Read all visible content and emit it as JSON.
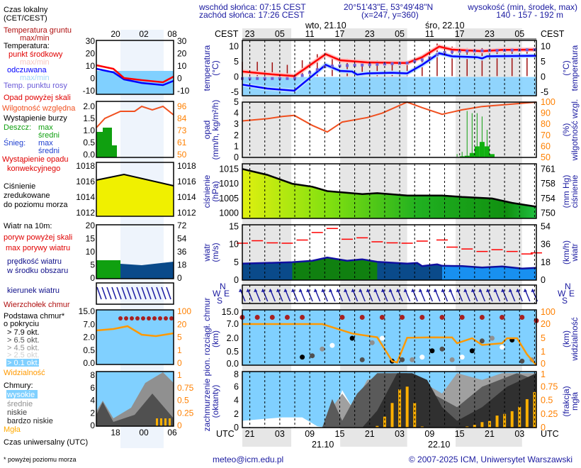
{
  "header": {
    "sunrise": "wschód słońca: 07:15 CEST",
    "sunset": "zachód słońca: 17:26 CEST",
    "coords": "20°51'43\"E, 53°49'48\"N",
    "grid": "(x=247,  y=360)",
    "elev_title": "wysokość (min, środek, max)",
    "elev_values": "140 - 157 - 192 m"
  },
  "axis": {
    "cest": "CEST",
    "utc": "UTC",
    "local_ticks": [
      "23",
      "05",
      "11",
      "17",
      "23",
      "05",
      "11",
      "17",
      "23",
      "05"
    ],
    "utc_ticks": [
      "21",
      "03",
      "09",
      "15",
      "21",
      "03",
      "09",
      "15",
      "21",
      "03"
    ],
    "date_top_1": "wto, 21.10",
    "date_top_2": "śro, 22.10",
    "date_bot_1": "21.10",
    "date_bot_2": "22.10",
    "mini_local": [
      "20",
      "02",
      "08"
    ],
    "mini_utc": [
      "18",
      "00",
      "06"
    ]
  },
  "legend": {
    "local_time": "Czas lokalny",
    "local_time2": "(CET/CEST)",
    "ground_temp": "Temperatura gruntu",
    "ground_temp2": "max/min",
    "temp": "Temperatura:",
    "mid": "punkt środkowy",
    "mid_maxmin": "max/min",
    "felt": "odczuwana",
    "felt_maxmin": "max/min",
    "dew": "Temp. punktu rosy",
    "precip_above": "Opad powyżej skali",
    "humidity": "Wilgotność względna",
    "storm": "Wystąpienie burzy",
    "rain": "Deszcz:",
    "rain_max": "max",
    "rain_avg": "średni",
    "snow": "Śnieg:",
    "snow_max": "max",
    "snow_avg": "średni",
    "conv": "Wystąpienie opadu",
    "conv2": "konwekcyjnego",
    "pressure": "Ciśnienie",
    "pressure2": "zredukowane",
    "pressure3": "do poziomu morza",
    "wind10": "Wiatr na 10m:",
    "gust_above": "poryw powyżej skali",
    "gust_max": "max porywy wiatru",
    "wind_speed": "prędkość wiatru",
    "wind_speed2": "w środku obszaru",
    "wind_dir": "kierunek wiatru",
    "cloud_top": "Wierzchołek chmur",
    "cloud_base": "Podstawa chmur*",
    "cloud_base2": "o pokryciu",
    "okt79": "> 7.9 okt.",
    "okt65": "> 6.5 okt.",
    "okt45": "> 4.5 okt.",
    "okt25": "> 2.5 okt.",
    "okt01": "> 0.1 okt.",
    "visibility": "Widzialność",
    "clouds": "Chmury:",
    "high": "wysokie",
    "medium": "średnie",
    "low": "niskie",
    "very_low": "bardzo niskie",
    "fog": "Mgła",
    "utc_time": "Czas uniwersalny (UTC)",
    "footnote": "* powyżej poziomu morza"
  },
  "panel_labels": {
    "temp_l1": "temperatura",
    "temp_l2": "(°C)",
    "temp_r1": "(°C)",
    "temp_r2": "temperatura",
    "precip_l1": "opad",
    "precip_l2": "(mm/h, kg/m²/h)",
    "precip_r1": "(%)",
    "precip_r2": "wilgotność wzgl.",
    "press_l1": "ciśnienie",
    "press_l2": "(hPa)",
    "press_r1": "(mm Hg)",
    "press_r2": "ciśnienie",
    "wind_l1": "wiatr",
    "wind_l2": "(m/s)",
    "wind_r1": "(km/h)",
    "wind_r2": "wiatr",
    "cb_l1": "pion. rozciągł. chmur",
    "cb_l2": "(km)",
    "cb_r1": "(km)",
    "cb_r2": "widzialność",
    "cc_l1": "zachmurzenie",
    "cc_l2": "(oktanty)",
    "cc_r1": "(frakcja)",
    "cc_r2": "mgła",
    "compass_n": "N",
    "compass_w": "W",
    "compass_e": "E",
    "compass_s": "S"
  },
  "footer": {
    "email": "meteo@icm.edu.pl",
    "copyright": "© 2007-2025 ICM, Uniwersytet Warszawski"
  },
  "colors": {
    "text_blue": "#1a1aa0",
    "temp": "#ff0000",
    "felt": "#0000ff",
    "humidity": "#f05020",
    "visibility": "#ff9900",
    "sky": "#80d0ff"
  },
  "chart_data": {
    "type": "meteogram",
    "time_unit": "hours from start (start ≈ 21:30 CEST, 20.10)",
    "night_intervals": [
      [
        0,
        9.8
      ],
      [
        19.6,
        33
      ],
      [
        42.7,
        56
      ]
    ],
    "temperature": {
      "ticks": [
        10,
        5,
        0,
        -5
      ],
      "ylim": [
        -6.2,
        12
      ],
      "mid": [
        [
          0,
          1.8
        ],
        [
          5,
          1.0
        ],
        [
          10.4,
          0.3
        ],
        [
          16.7,
          7.5
        ],
        [
          19.6,
          5.5
        ],
        [
          25,
          4.8
        ],
        [
          33,
          4.6
        ],
        [
          36,
          6.5
        ],
        [
          39.4,
          10
        ],
        [
          42,
          9
        ],
        [
          48,
          8.5
        ],
        [
          52,
          8.9
        ],
        [
          59,
          9
        ]
      ],
      "felt": [
        [
          0,
          -2.5
        ],
        [
          5,
          -3.8
        ],
        [
          10.4,
          -4.5
        ],
        [
          16.7,
          4
        ],
        [
          19.6,
          2
        ],
        [
          22,
          1.8
        ],
        [
          23,
          0.8
        ],
        [
          25,
          1.2
        ],
        [
          30,
          1.4
        ],
        [
          33,
          1.2
        ],
        [
          36,
          4
        ],
        [
          39.4,
          7.8
        ],
        [
          42,
          6.8
        ],
        [
          47,
          6.5
        ],
        [
          48,
          6.1
        ],
        [
          49,
          6.8
        ],
        [
          59,
          7
        ]
      ],
      "dew": [
        [
          0,
          -0.5
        ],
        [
          10.4,
          -0.5
        ],
        [
          12,
          0.5
        ],
        [
          16.7,
          3.5
        ],
        [
          25,
          4
        ],
        [
          33,
          4.6
        ],
        [
          37,
          6
        ],
        [
          40,
          8
        ],
        [
          44,
          8.5
        ],
        [
          59,
          9
        ]
      ],
      "ground_max": [
        [
          0,
          5
        ],
        [
          3,
          5
        ],
        [
          6,
          4.8
        ],
        [
          9,
          4
        ],
        [
          12,
          5.5
        ],
        [
          15,
          7.5
        ],
        [
          18,
          7
        ],
        [
          21,
          6
        ],
        [
          24,
          5.4
        ],
        [
          27,
          5.5
        ],
        [
          30,
          5.3
        ],
        [
          33,
          5.2
        ],
        [
          36,
          7
        ],
        [
          39,
          11
        ],
        [
          42,
          10
        ],
        [
          45,
          9.5
        ],
        [
          48,
          9.5
        ],
        [
          51,
          9.2
        ],
        [
          54,
          9.3
        ],
        [
          57,
          9.4
        ]
      ]
    },
    "precipitation": {
      "ticks": [
        5,
        4,
        3,
        2,
        1,
        0
      ],
      "ylim": [
        0,
        5.2
      ],
      "humidity_ticks": [
        100,
        90,
        80,
        70,
        60,
        50
      ],
      "humidity": [
        [
          0,
          83
        ],
        [
          5,
          85
        ],
        [
          8,
          87
        ],
        [
          10.4,
          88
        ],
        [
          14,
          79
        ],
        [
          17,
          73
        ],
        [
          20,
          82
        ],
        [
          25,
          86
        ],
        [
          28,
          90
        ],
        [
          33,
          100
        ],
        [
          36,
          95
        ],
        [
          40,
          89
        ],
        [
          44,
          93
        ],
        [
          48,
          96
        ],
        [
          59,
          100
        ]
      ],
      "rain_avg": [
        [
          44,
          0.1
        ],
        [
          45,
          0.15
        ],
        [
          46,
          0.4
        ],
        [
          47,
          1.0
        ],
        [
          48,
          1.4
        ],
        [
          49,
          1.0
        ],
        [
          50,
          0.3
        ]
      ],
      "rain_max": [
        [
          43,
          0.3
        ],
        [
          44,
          0.5
        ],
        [
          45,
          4.2
        ],
        [
          46,
          4.0
        ],
        [
          47,
          4.0
        ],
        [
          48,
          3.7
        ],
        [
          49,
          2.5
        ]
      ]
    },
    "pressure": {
      "ticks": [
        1015,
        1010,
        1005,
        1000
      ],
      "mmhg_ticks": [
        761,
        758,
        754,
        750
      ],
      "ylim": [
        998,
        1017.4
      ],
      "values": [
        [
          0,
          1015
        ],
        [
          5,
          1013
        ],
        [
          10,
          1010
        ],
        [
          14,
          1009
        ],
        [
          17,
          1007.5
        ],
        [
          24,
          1006.5
        ],
        [
          27,
          1006.8
        ],
        [
          33,
          1006
        ],
        [
          40,
          1006
        ],
        [
          44,
          1005.5
        ],
        [
          50,
          1005
        ],
        [
          54,
          1003.5
        ],
        [
          59,
          1002.2
        ]
      ]
    },
    "wind": {
      "ticks": [
        15,
        10,
        5,
        0
      ],
      "kmh_ticks": [
        54,
        36,
        18,
        0
      ],
      "ylim": [
        0,
        15.4
      ],
      "speed": [
        [
          0,
          4.6
        ],
        [
          5,
          4.8
        ],
        [
          10,
          5
        ],
        [
          14,
          5.4
        ],
        [
          17,
          6.3
        ],
        [
          21,
          5.4
        ],
        [
          24,
          5.8
        ],
        [
          27,
          5.1
        ],
        [
          33,
          4.6
        ],
        [
          35,
          4.8
        ],
        [
          36,
          3.9
        ],
        [
          39,
          4.4
        ],
        [
          40,
          4
        ],
        [
          44,
          3.9
        ],
        [
          48,
          3.5
        ],
        [
          52,
          3.8
        ],
        [
          56,
          3.2
        ],
        [
          59,
          3.4
        ]
      ],
      "gust": [
        [
          0,
          10.3
        ],
        [
          3,
          11
        ],
        [
          6,
          10.4
        ],
        [
          9,
          10.3
        ],
        [
          12,
          11.2
        ],
        [
          15,
          13.3
        ],
        [
          18,
          14.4
        ],
        [
          21,
          11.4
        ],
        [
          24,
          11.8
        ],
        [
          27,
          10.7
        ],
        [
          30,
          10.4
        ],
        [
          33,
          10.3
        ],
        [
          36,
          10.9
        ],
        [
          40,
          11.2
        ],
        [
          42,
          9.2
        ],
        [
          45,
          8.7
        ],
        [
          48,
          8
        ],
        [
          51,
          8.5
        ],
        [
          54,
          8
        ],
        [
          57,
          7.3
        ],
        [
          59,
          7.6
        ]
      ],
      "direction_deg": 140
    },
    "cloud_base": {
      "ticks": [
        "15.0",
        "7.0",
        "2.0",
        "0.5",
        "0.0"
      ],
      "vis_ticks": [
        "100",
        "20",
        "5",
        "1",
        "0"
      ],
      "top": [
        [
          0,
          11
        ],
        [
          3,
          11
        ],
        [
          6,
          11
        ],
        [
          9,
          11
        ],
        [
          12,
          11
        ],
        [
          20,
          11
        ],
        [
          24,
          11
        ],
        [
          28,
          11
        ],
        [
          32,
          11
        ],
        [
          36,
          11
        ],
        [
          40,
          11
        ],
        [
          44,
          11
        ],
        [
          48,
          11
        ],
        [
          52,
          11
        ],
        [
          56,
          11
        ],
        [
          59,
          9
        ]
      ],
      "base_points": [
        [
          12,
          0.3
        ],
        [
          14,
          0.35
        ],
        [
          16,
          0.8
        ],
        [
          18,
          1.2
        ],
        [
          22,
          2
        ],
        [
          24,
          0.2
        ],
        [
          26,
          1.5
        ],
        [
          28,
          2
        ],
        [
          30,
          0.15
        ],
        [
          32,
          0.2
        ],
        [
          34,
          0.2
        ],
        [
          36,
          0.3
        ],
        [
          38,
          0.6
        ],
        [
          40,
          0.8
        ],
        [
          42,
          0.2
        ],
        [
          44,
          0.3
        ],
        [
          46,
          0.6
        ],
        [
          48,
          1.7
        ],
        [
          50,
          2
        ],
        [
          52,
          1
        ],
        [
          54,
          1.8
        ],
        [
          56,
          0.15
        ],
        [
          58,
          0.2
        ]
      ],
      "visibility": [
        [
          0,
          20
        ],
        [
          16,
          20
        ],
        [
          22,
          10
        ],
        [
          27,
          6
        ],
        [
          30,
          0.3
        ],
        [
          31,
          0.2
        ],
        [
          33,
          5.5
        ],
        [
          38,
          6
        ],
        [
          42,
          5.8
        ],
        [
          43,
          3.5
        ],
        [
          46,
          5
        ],
        [
          48,
          3
        ],
        [
          52,
          3.5
        ],
        [
          53,
          5
        ],
        [
          55,
          5
        ],
        [
          57,
          0.8
        ],
        [
          59,
          0
        ]
      ]
    },
    "cloud_cover": {
      "ticks": [
        8,
        6,
        4,
        2,
        0
      ],
      "fog_ticks": [
        "1",
        "0.75",
        "0.5",
        "0.25",
        "0"
      ],
      "high": [
        [
          0,
          1
        ],
        [
          8,
          1.5
        ],
        [
          12,
          1.5
        ],
        [
          15,
          0.2
        ],
        [
          17,
          0
        ],
        [
          20,
          5.5
        ],
        [
          22,
          3
        ],
        [
          24,
          0
        ],
        [
          59,
          0
        ]
      ],
      "medium": [
        [
          0,
          0
        ],
        [
          16,
          0
        ],
        [
          18,
          3
        ],
        [
          20,
          5
        ],
        [
          22,
          3
        ],
        [
          25,
          7
        ],
        [
          30,
          8
        ],
        [
          33,
          8
        ],
        [
          40,
          5
        ],
        [
          43,
          8
        ],
        [
          48,
          7
        ],
        [
          52,
          8
        ],
        [
          59,
          8
        ]
      ],
      "low": [
        [
          0,
          0
        ],
        [
          16,
          0
        ],
        [
          18,
          4.2
        ],
        [
          20,
          1
        ],
        [
          23,
          5
        ],
        [
          27,
          8
        ],
        [
          33,
          8
        ],
        [
          38,
          5
        ],
        [
          43,
          3
        ],
        [
          48,
          6
        ],
        [
          55,
          8
        ],
        [
          59,
          7
        ]
      ],
      "very_low": [
        [
          0,
          0
        ],
        [
          24,
          0
        ],
        [
          27,
          2.5
        ],
        [
          31,
          8
        ],
        [
          34,
          8
        ],
        [
          37,
          7
        ],
        [
          40,
          3
        ],
        [
          43,
          1
        ],
        [
          48,
          3
        ],
        [
          53,
          6
        ],
        [
          59,
          8
        ]
      ],
      "fog": [
        [
          27,
          0.03
        ],
        [
          28.5,
          0.2
        ],
        [
          30,
          0.45
        ],
        [
          31.5,
          0.7
        ],
        [
          33,
          0.75
        ],
        [
          34.5,
          0.45
        ],
        [
          36,
          0.02
        ],
        [
          45,
          0.02
        ],
        [
          46.5,
          0.05
        ],
        [
          48,
          0.1
        ],
        [
          49.5,
          0.12
        ],
        [
          51,
          0.22
        ],
        [
          52.5,
          0.25
        ],
        [
          54,
          0.3
        ],
        [
          55.5,
          0.38
        ],
        [
          57,
          0.52
        ],
        [
          58.5,
          0.65
        ]
      ]
    }
  }
}
